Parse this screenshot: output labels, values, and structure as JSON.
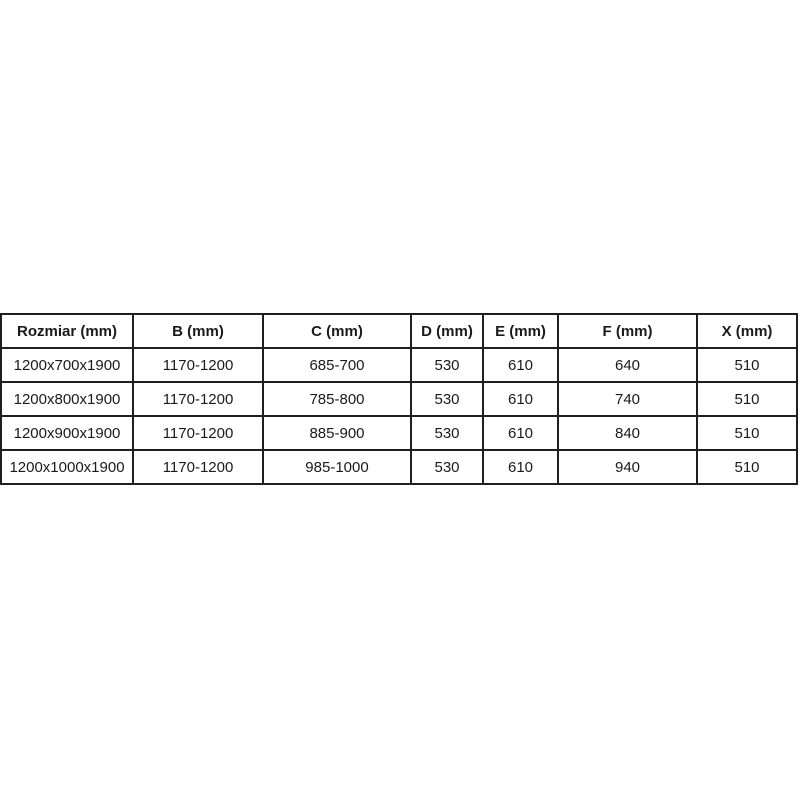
{
  "chart_data": {
    "type": "table",
    "columns": [
      "Rozmiar (mm)",
      "B (mm)",
      "C (mm)",
      "D (mm)",
      "E (mm)",
      "F (mm)",
      "X (mm)"
    ],
    "rows": [
      [
        "1200x700x1900",
        "1170-1200",
        "685-700",
        "530",
        "610",
        "640",
        "510"
      ],
      [
        "1200x800x1900",
        "1170-1200",
        "785-800",
        "530",
        "610",
        "740",
        "510"
      ],
      [
        "1200x900x1900",
        "1170-1200",
        "885-900",
        "530",
        "610",
        "840",
        "510"
      ],
      [
        "1200x1000x1900",
        "1170-1200",
        "985-1000",
        "530",
        "610",
        "940",
        "510"
      ]
    ]
  },
  "colors": {
    "background": "#ffffff",
    "border": "#1f1f1f",
    "text": "#1a1a1a"
  }
}
